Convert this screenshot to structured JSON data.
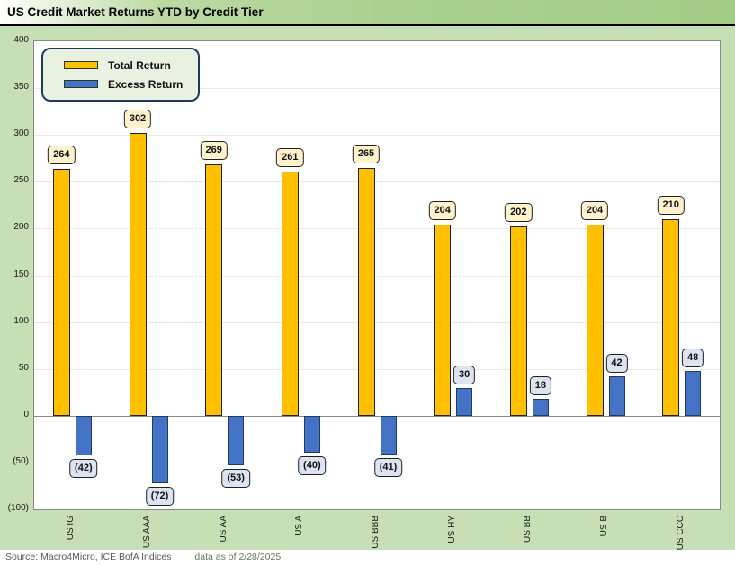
{
  "title": "US Credit Market Returns YTD by Credit Tier",
  "source": {
    "provider": "Source: Macro4Micro, ICE BofA Indices",
    "as_of": "data as of 2/28/2025"
  },
  "colors": {
    "total_return": "#FFC000",
    "excess_return": "#4472C4",
    "total_label_bg": "#FFF2CC",
    "excess_label_bg": "#DCE4F2",
    "title_band": "#A9D08E",
    "chart_bg": "#C6DFB4",
    "legend_bg": "#E9F2E1",
    "navy_border": "#1F3A5F",
    "axis_gray": "#8A8A8A"
  },
  "chart_data": {
    "type": "bar",
    "title": "US Credit Market Returns YTD by Credit Tier",
    "categories": [
      "US IG",
      "US AAA",
      "US AA",
      "US A",
      "US BBB",
      "US HY",
      "US BB",
      "US B",
      "US CCC"
    ],
    "series": [
      {
        "name": "Total Return",
        "color": "#FFC000",
        "values": [
          264,
          302,
          269,
          261,
          265,
          204,
          202,
          204,
          210
        ]
      },
      {
        "name": "Excess Return",
        "color": "#4472C4",
        "values": [
          -42,
          -72,
          -53,
          -40,
          -41,
          30,
          18,
          42,
          48
        ]
      }
    ],
    "xlabel": "",
    "ylabel": "",
    "ylim": [
      -100,
      400
    ],
    "ytick_step": 50,
    "yticks": [
      "400",
      "350",
      "300",
      "250",
      "200",
      "150",
      "100",
      "50",
      "0",
      "(50)",
      "(100)"
    ],
    "grid": true,
    "data_labels": true,
    "legend_position": "top-left",
    "negative_number_format": "parentheses"
  }
}
